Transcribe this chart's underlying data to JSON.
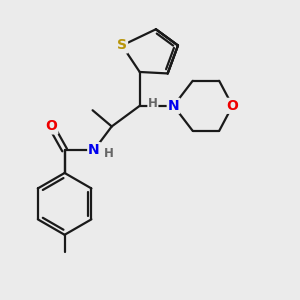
{
  "background_color": "#ebebeb",
  "bond_color": "#1a1a1a",
  "bond_width": 1.6,
  "atom_colors": {
    "S": "#b8960c",
    "N": "#0000ee",
    "O": "#ee0000",
    "C": "#1a1a1a",
    "H": "#666666"
  },
  "font_size_atom": 10,
  "font_size_h": 8.5
}
